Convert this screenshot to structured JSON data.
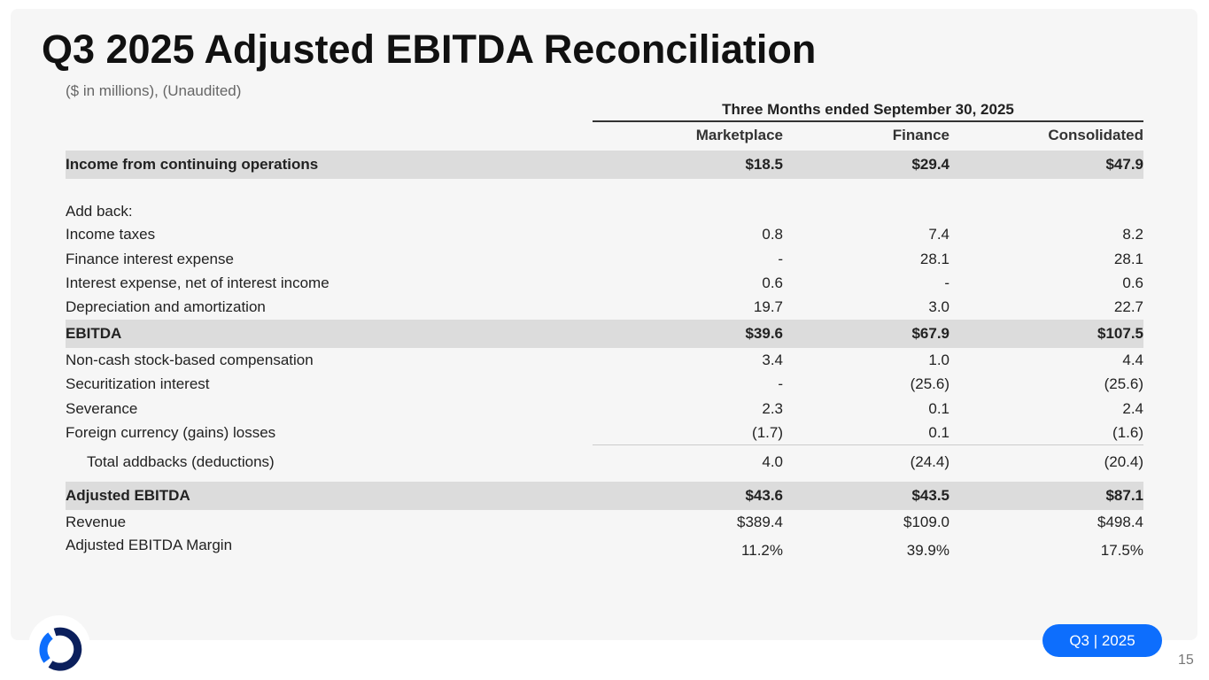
{
  "title": "Q3 2025 Adjusted EBITDA Reconciliation",
  "subtitle": "($ in millions), (Unaudited)",
  "period": "Three Months ended September 30, 2025",
  "columns": [
    "Marketplace",
    "Finance",
    "Consolidated"
  ],
  "rows": [
    {
      "label": "Income from continuing operations",
      "values": [
        "$18.5",
        "$29.4",
        "$47.9"
      ]
    },
    {
      "label": "Add back:",
      "values": [
        "",
        "",
        ""
      ]
    },
    {
      "label": "Income taxes",
      "values": [
        "0.8",
        "7.4",
        "8.2"
      ]
    },
    {
      "label": "Finance interest expense",
      "values": [
        "-",
        "28.1",
        "28.1"
      ]
    },
    {
      "label": "Interest expense, net of interest income",
      "values": [
        "0.6",
        "-",
        "0.6"
      ]
    },
    {
      "label": "Depreciation and amortization",
      "values": [
        "19.7",
        "3.0",
        "22.7"
      ]
    },
    {
      "label": "EBITDA",
      "values": [
        "$39.6",
        "$67.9",
        "$107.5"
      ]
    },
    {
      "label": "Non-cash stock-based compensation",
      "values": [
        "3.4",
        "1.0",
        "4.4"
      ]
    },
    {
      "label": "Securitization interest",
      "values": [
        "-",
        "(25.6)",
        "(25.6)"
      ]
    },
    {
      "label": "Severance",
      "values": [
        "2.3",
        "0.1",
        "2.4"
      ]
    },
    {
      "label": "Foreign currency (gains) losses",
      "values": [
        "(1.7)",
        "0.1",
        "(1.6)"
      ]
    },
    {
      "label": "Total addbacks (deductions)",
      "values": [
        "4.0",
        "(24.4)",
        "(20.4)"
      ]
    },
    {
      "label": "Adjusted EBITDA",
      "values": [
        "$43.6",
        "$43.5",
        "$87.1"
      ]
    },
    {
      "label": "Revenue",
      "values": [
        "$389.4",
        "$109.0",
        "$498.4"
      ]
    },
    {
      "label": "Adjusted EBITDA Margin",
      "values": [
        "11.2%",
        "39.9%",
        "17.5%"
      ]
    }
  ],
  "badge": "Q3 | 2025",
  "page_number": "15",
  "colors": {
    "accent": "#0d6efd",
    "logo_dark": "#0b1f5c",
    "shade": "#dcdcdc"
  }
}
